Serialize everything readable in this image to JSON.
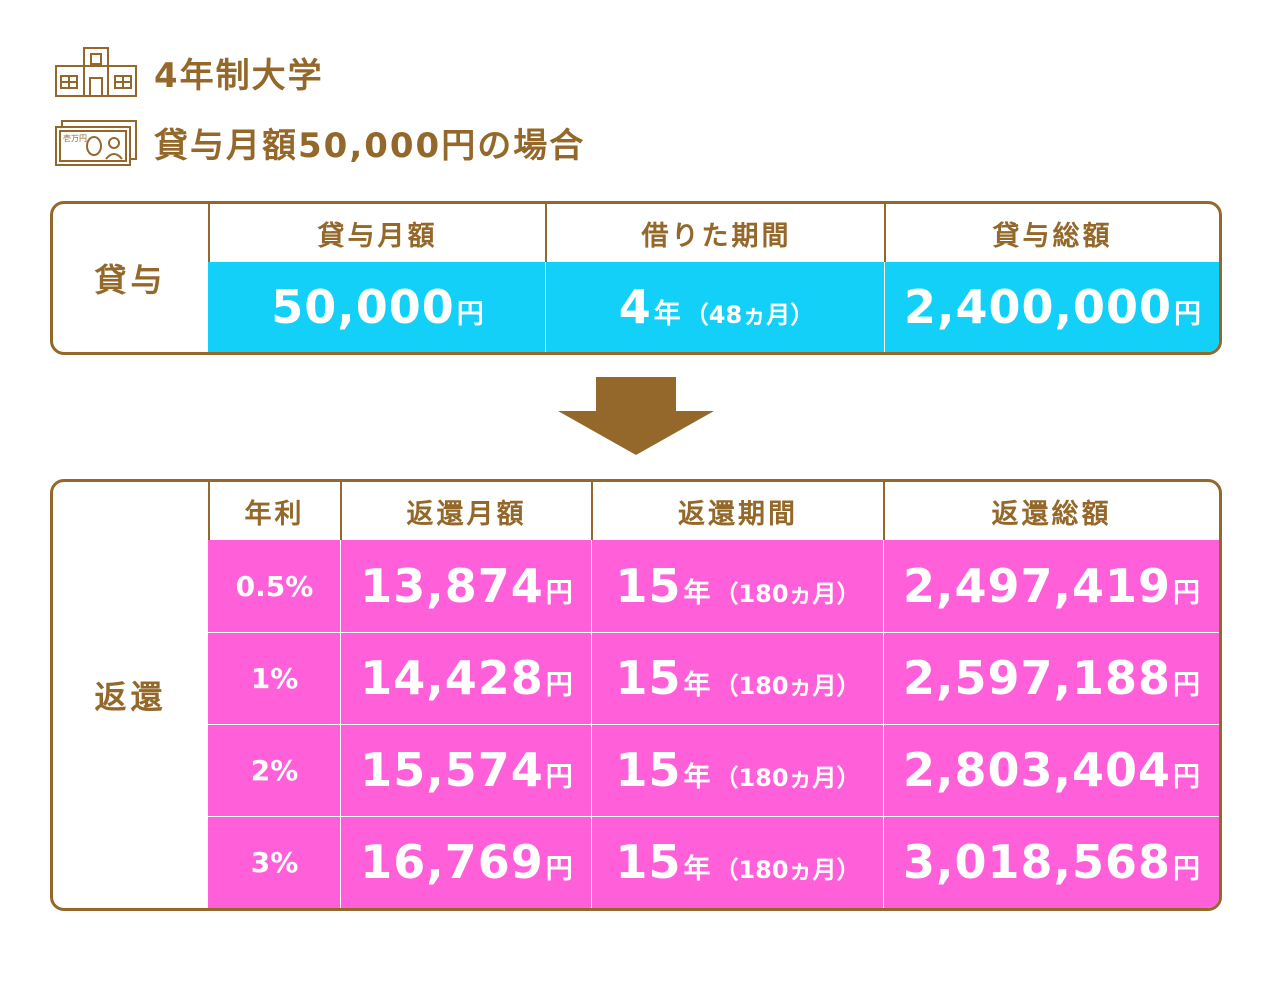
{
  "header": {
    "line1": "4年制大学",
    "line1_icon": "university-building-icon",
    "line2": "貸与月額50,000円の場合",
    "line2_icon": "banknote-icon",
    "banknote_text": "壱万円"
  },
  "loan": {
    "label": "貸与",
    "columns": [
      "貸与月額",
      "借りた期間",
      "貸与総額"
    ],
    "monthly": {
      "value": "50,000",
      "unit": "円"
    },
    "period": {
      "value": "4",
      "unit": "年",
      "note": "（48ヵ月）"
    },
    "total": {
      "value": "2,400,000",
      "unit": "円"
    }
  },
  "arrow_icon": "down-arrow-icon",
  "repay": {
    "label": "返還",
    "columns": [
      "年利",
      "返還月額",
      "返還期間",
      "返還総額"
    ],
    "rows": [
      {
        "rate": "0.5%",
        "monthly": "13,874",
        "period_years": "15",
        "period_note": "（180ヵ月）",
        "total": "2,497,419"
      },
      {
        "rate": "1%",
        "monthly": "14,428",
        "period_years": "15",
        "period_note": "（180ヵ月）",
        "total": "2,597,188"
      },
      {
        "rate": "2%",
        "monthly": "15,574",
        "period_years": "15",
        "period_note": "（180ヵ月）",
        "total": "2,803,404"
      },
      {
        "rate": "3%",
        "monthly": "16,769",
        "period_years": "15",
        "period_note": "（180ヵ月）",
        "total": "3,018,568"
      }
    ],
    "yen_unit": "円",
    "year_unit": "年"
  },
  "colors": {
    "brown": "#94682a",
    "cyan": "#12d0f7",
    "pink": "#ff5fd8"
  }
}
